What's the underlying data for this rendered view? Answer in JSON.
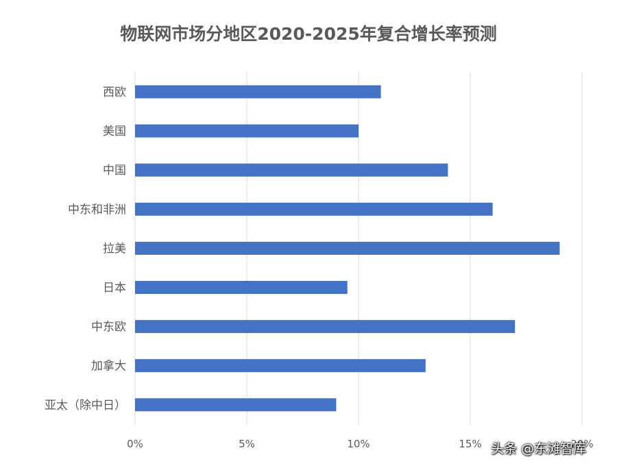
{
  "chart_data": {
    "type": "bar",
    "orientation": "horizontal",
    "title": "物联网市场分地区2020-2025年复合增长率预测",
    "categories": [
      "西欧",
      "美国",
      "中国",
      "中东和非洲",
      "拉美",
      "日本",
      "中东欧",
      "加拿大",
      "亚太（除中日）"
    ],
    "values": [
      11,
      10,
      14,
      16,
      19,
      9.5,
      17,
      13,
      9
    ],
    "xlim": [
      0,
      20
    ],
    "x_ticks": [
      0,
      5,
      10,
      15,
      20
    ],
    "x_tick_labels": [
      "0%",
      "5%",
      "10%",
      "15%",
      "20%"
    ],
    "xlabel": "",
    "ylabel": "",
    "grid": true,
    "legend": "none",
    "bar_color": "#4472c4"
  },
  "watermark": "头条 @东滩智库"
}
